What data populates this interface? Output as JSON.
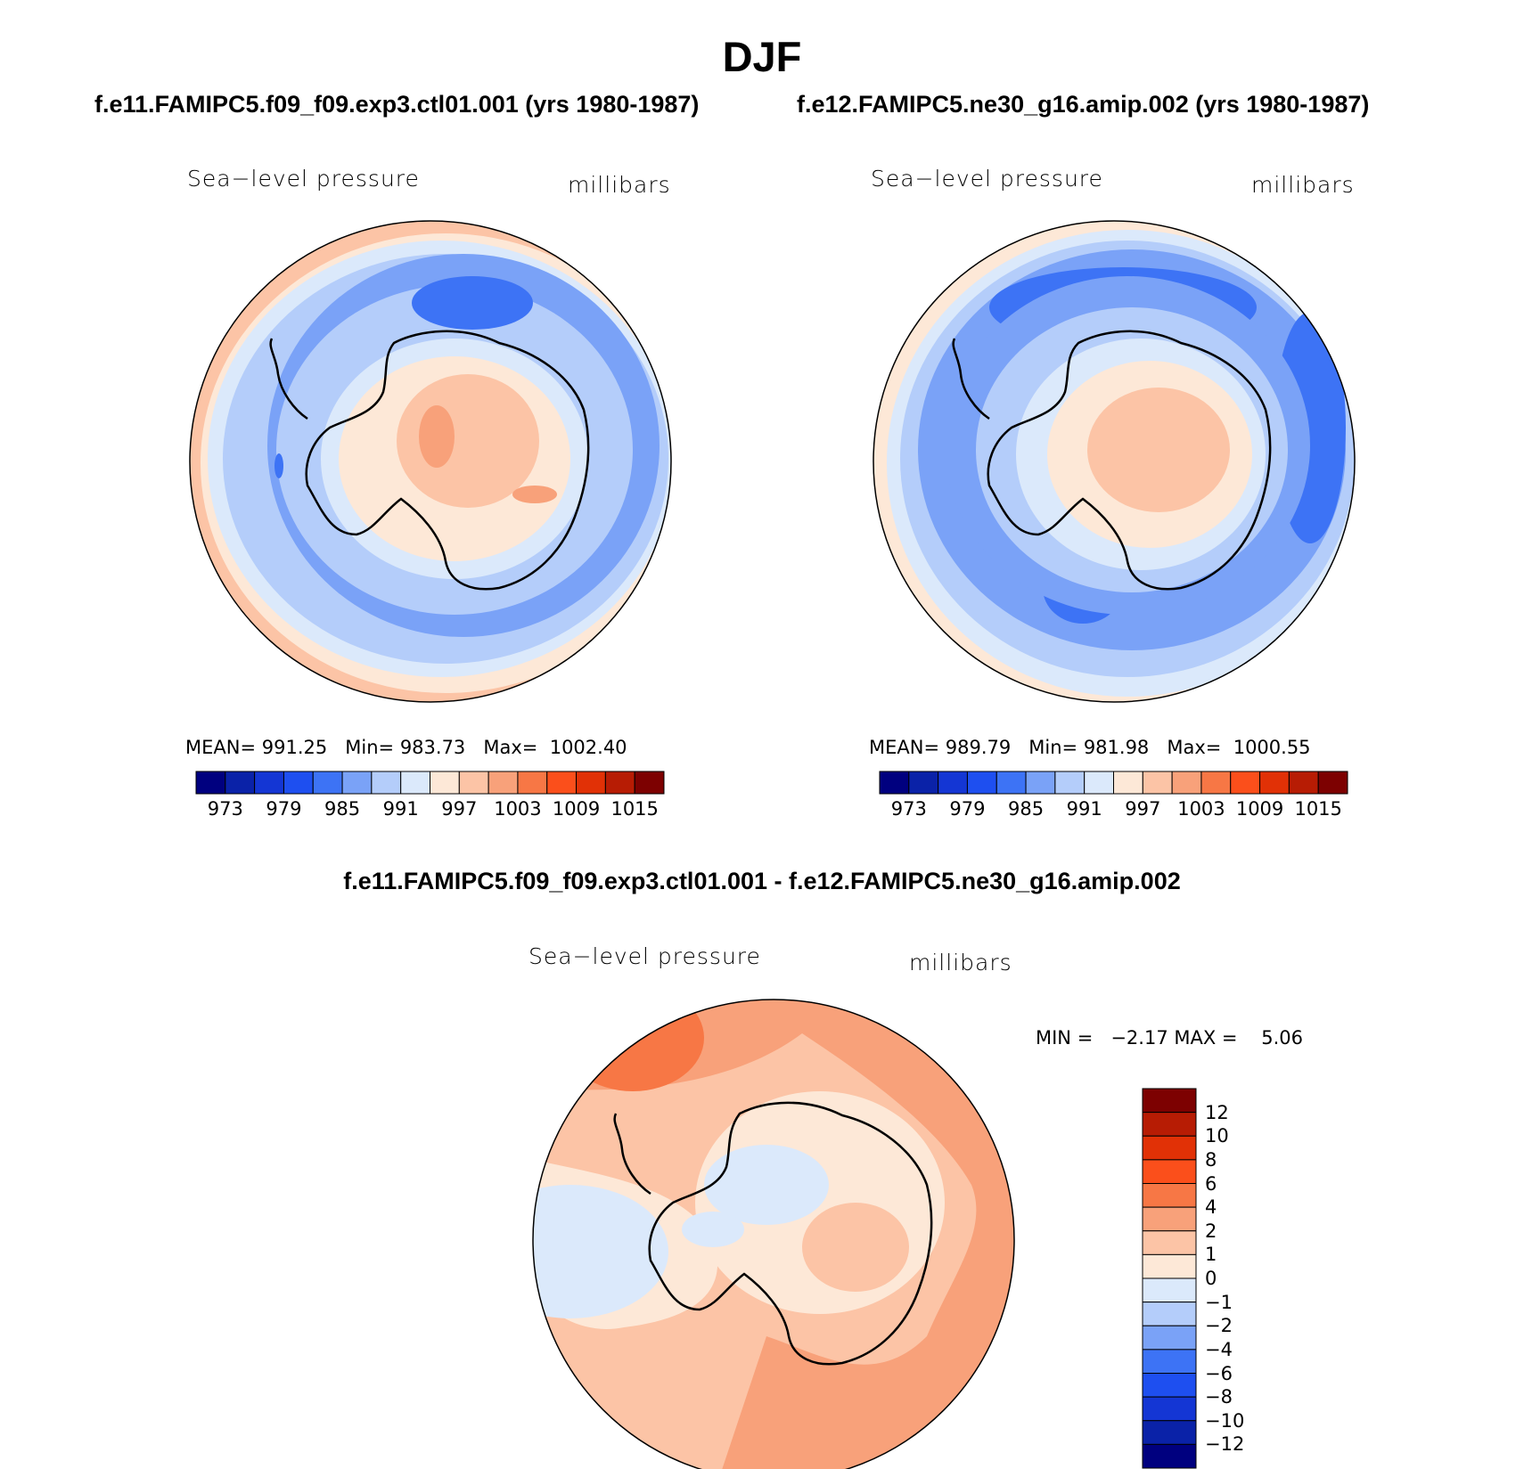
{
  "title": "DJF",
  "left_panel": {
    "case_title": "f.e11.FAMIPC5.f09_f09.exp3.ctl01.001 (yrs 1980-1987)",
    "variable": "Sea−level pressure",
    "units": "millibars",
    "mean_label": "MEAN=",
    "mean": "991.25",
    "min_label": "Min=",
    "min": "983.73",
    "max_label": "Max=",
    "max": "1002.40"
  },
  "right_panel": {
    "case_title": "f.e12.FAMIPC5.ne30_g16.amip.002 (yrs 1980-1987)",
    "variable": "Sea−level pressure",
    "units": "millibars",
    "mean_label": "MEAN=",
    "mean": "989.79",
    "min_label": "Min=",
    "min": "981.98",
    "max_label": "Max=",
    "max": "1000.55"
  },
  "colorbar_horizontal": {
    "ticks": [
      "973",
      "979",
      "985",
      "991",
      "997",
      "1003",
      "1009",
      "1015"
    ],
    "colors": [
      "#00007f",
      "#0a22a8",
      "#1436d4",
      "#1e4ff0",
      "#3d73f5",
      "#7aa2f7",
      "#b4cdfa",
      "#dbe9fb",
      "#fde8d7",
      "#fcc4a6",
      "#f8a17a",
      "#f77745",
      "#fb4f1b",
      "#e13106",
      "#b71c04",
      "#7d0101"
    ]
  },
  "diff_panel": {
    "title": "f.e11.FAMIPC5.f09_f09.exp3.ctl01.001 - f.e12.FAMIPC5.ne30_g16.amip.002",
    "variable": "Sea−level pressure",
    "units": "millibars",
    "min_label": "MIN =",
    "min": "−2.17",
    "max_label": "MAX =",
    "max": "5.06"
  },
  "colorbar_vertical": {
    "ticks": [
      "12",
      "10",
      "8",
      "6",
      "4",
      "2",
      "1",
      "0",
      "−1",
      "−2",
      "−4",
      "−6",
      "−8",
      "−10",
      "−12"
    ],
    "colors": [
      "#7d0101",
      "#b71c04",
      "#e13106",
      "#fb4f1b",
      "#f77745",
      "#f8a17a",
      "#fcc4a6",
      "#fde8d7",
      "#dbe9fb",
      "#b4cdfa",
      "#7aa2f7",
      "#3d73f5",
      "#1e4ff0",
      "#1436d4",
      "#0a22a8",
      "#00007f"
    ]
  },
  "map_colors": {
    "outline": "#000000",
    "coast": "#000000"
  }
}
